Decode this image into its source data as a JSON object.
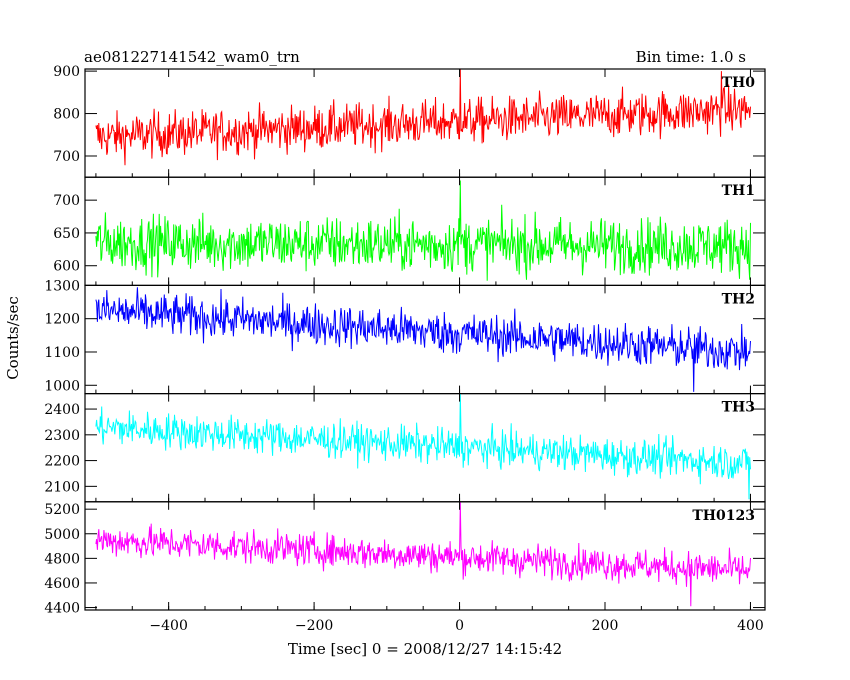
{
  "chart_data": {
    "type": "line",
    "title": "ae081227141542_wam0_trn",
    "bin_time_label": "Bin time: 1.0 s",
    "xlabel": "Time [sec] 0 = 2008/12/27 14:15:42",
    "ylabel": "Counts/sec",
    "xlim": [
      -515,
      420
    ],
    "x_ticks": [
      -400,
      -200,
      0,
      200,
      400
    ],
    "x_tick_labels": [
      "−400",
      "−200",
      "0",
      "200",
      "400"
    ],
    "x_range_data": [
      -500,
      400
    ],
    "grid": false,
    "panels": [
      {
        "name": "TH0",
        "color": "#ff0000",
        "ylim": [
          650,
          905
        ],
        "yticks": [
          700,
          800,
          900
        ],
        "ytick_labels": [
          "700",
          "800",
          "900"
        ],
        "trend": {
          "start": 745,
          "end": 810
        },
        "noise": 38,
        "spikes": [
          {
            "x": 1,
            "y": 905
          },
          {
            "x": 360,
            "y": 900
          }
        ]
      },
      {
        "name": "TH1",
        "color": "#00ff00",
        "ylim": [
          570,
          735
        ],
        "yticks": [
          600,
          650,
          700
        ],
        "ytick_labels": [
          "600",
          "650",
          "700"
        ],
        "trend": {
          "start": 635,
          "end": 630
        },
        "noise": 30,
        "spikes": [
          {
            "x": 1,
            "y": 730
          }
        ]
      },
      {
        "name": "TH2",
        "color": "#0000ff",
        "ylim": [
          975,
          1300
        ],
        "yticks": [
          1000,
          1100,
          1200,
          1300
        ],
        "ytick_labels": [
          "1000",
          "1100",
          "1200",
          "1300"
        ],
        "trend": {
          "start": 1225,
          "end": 1100
        },
        "noise": 45,
        "spikes": [
          {
            "x": 322,
            "y": 980
          }
        ]
      },
      {
        "name": "TH3",
        "color": "#00ffff",
        "ylim": [
          2040,
          2460
        ],
        "yticks": [
          2100,
          2200,
          2300,
          2400
        ],
        "ytick_labels": [
          "2100",
          "2200",
          "2300",
          "2400"
        ],
        "trend": {
          "start": 2330,
          "end": 2190
        },
        "noise": 50,
        "spikes": [
          {
            "x": 1,
            "y": 2460
          },
          {
            "x": 398,
            "y": 2050
          }
        ]
      },
      {
        "name": "TH0123",
        "color": "#ff00ff",
        "ylim": [
          4380,
          5260
        ],
        "yticks": [
          4400,
          4600,
          4800,
          5000,
          5200
        ],
        "ytick_labels": [
          "4400",
          "4600",
          "4800",
          "5000",
          "5200"
        ],
        "trend": {
          "start": 4950,
          "end": 4700
        },
        "noise": 95,
        "spikes": [
          {
            "x": 1,
            "y": 5260
          },
          {
            "x": 318,
            "y": 4410
          }
        ]
      }
    ]
  }
}
